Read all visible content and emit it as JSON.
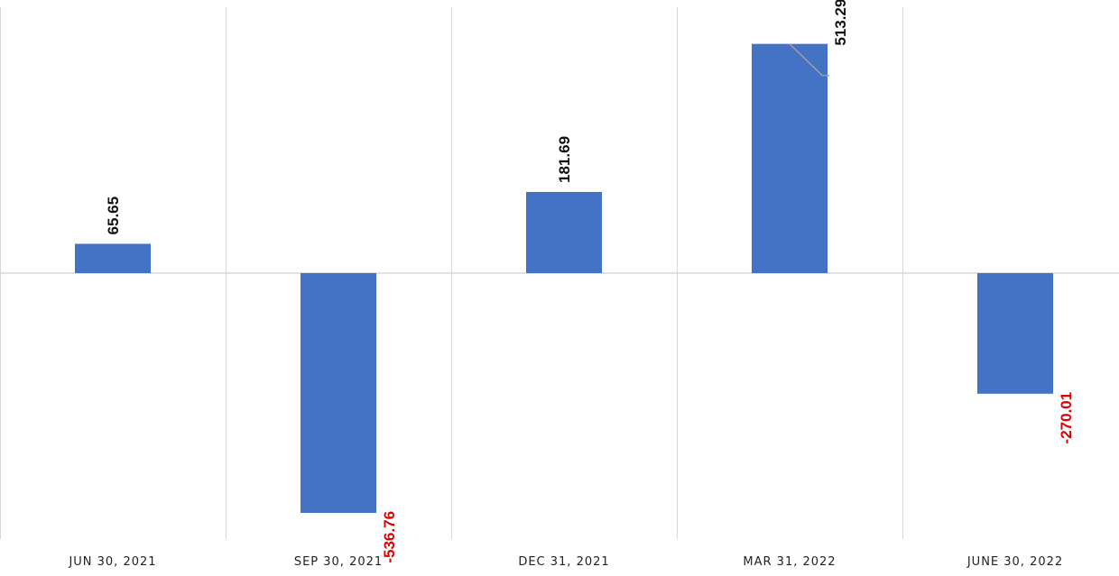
{
  "chart_data": {
    "type": "bar",
    "categories": [
      "JUN 30, 2021",
      "SEP 30, 2021",
      "DEC 31, 2021",
      "MAR 31, 2022",
      "JUNE 30, 2022"
    ],
    "values": [
      65.65,
      -536.76,
      181.69,
      513.29,
      -270.01
    ],
    "data_labels": [
      "65.65",
      "-536.76",
      "181.69",
      "513.29",
      "-270.01"
    ],
    "title": "",
    "xlabel": "",
    "ylabel": "",
    "ylim": [
      -600,
      600
    ],
    "grid": "vertical",
    "legend": "none",
    "colors": {
      "bar": "#4472C4",
      "positive_label": "#111111",
      "negative_label": "#E00000",
      "gridline": "#d9d9d9",
      "zero_line": "#d9d9d9"
    }
  }
}
